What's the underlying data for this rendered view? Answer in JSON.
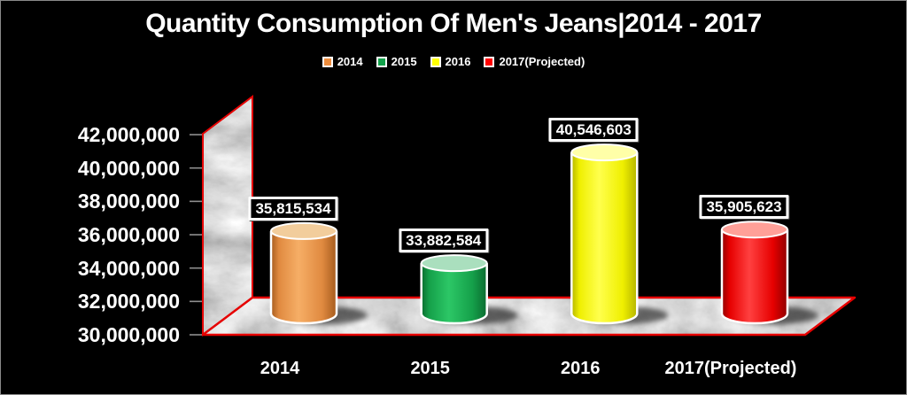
{
  "window": {
    "background": "#000000",
    "border_color": "#8A8A8A",
    "text_color": "#FFFFFF"
  },
  "chart_data": {
    "type": "bar",
    "style": "3d-cylinder",
    "title": "Quantity Consumption Of Men's Jeans|2014 - 2017",
    "categories": [
      "2014",
      "2015",
      "2016",
      "2017(Projected)"
    ],
    "values": [
      35815534,
      33882584,
      40546603,
      35905623
    ],
    "value_labels": [
      "35,815,534",
      "33,882,584",
      "40,546,603",
      "35,905,623"
    ],
    "legend": [
      {
        "label": "2014",
        "color": "#ED8C3C"
      },
      {
        "label": "2015",
        "color": "#12A24B"
      },
      {
        "label": "2016",
        "color": "#FFFF00"
      },
      {
        "label": "2017(Projected)",
        "color": "#FF0000"
      }
    ],
    "legend_position": "top",
    "ylim": [
      30000000,
      42000000
    ],
    "ytick_step": 2000000,
    "ytick_labels": [
      "30,000,000",
      "32,000,000",
      "34,000,000",
      "36,000,000",
      "38,000,000",
      "40,000,000",
      "42,000,000"
    ],
    "xlabel": "",
    "ylabel": "",
    "grid": false,
    "bar_colors": [
      {
        "dark": "#A55B1D",
        "mid": "#E08A40",
        "light": "#F6AE66",
        "top": "#F2CD9C"
      },
      {
        "dark": "#0A6B2F",
        "mid": "#15A04A",
        "light": "#2CC766",
        "top": "#AADFBE"
      },
      {
        "dark": "#B5B500",
        "mid": "#EFEF00",
        "light": "#FFFF4D",
        "top": "#FFFFA8"
      },
      {
        "dark": "#8F0000",
        "mid": "#E60000",
        "light": "#FF4040",
        "top": "#FFA098"
      }
    ],
    "axis_edge_color": "#E60000",
    "tick_color": "#8F8F8F",
    "wall_texture": "gray-marble",
    "floor_texture": "gray-marble"
  }
}
